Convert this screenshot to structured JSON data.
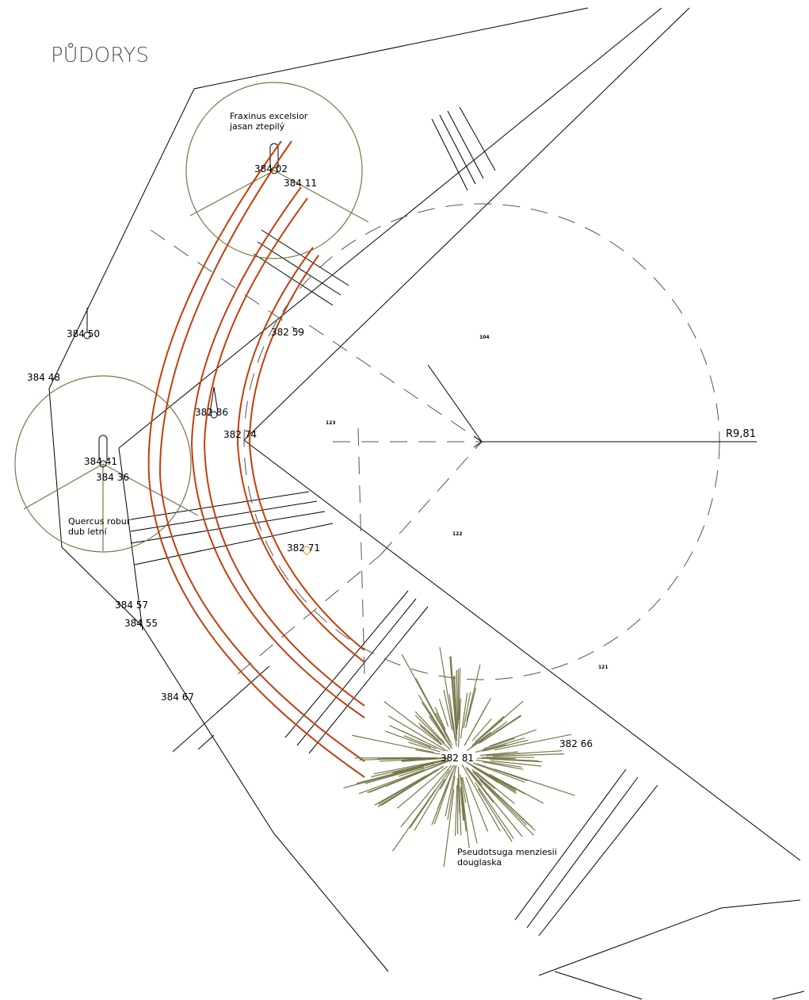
{
  "header": {
    "title": "PŮDORYS"
  },
  "trees": [
    {
      "latin": "Fraxinus excelsior",
      "czech": "jasan ztepilý"
    },
    {
      "latin": "Quercus robur",
      "czech": "dub letní"
    },
    {
      "latin": "Pseudotsuga menziesii",
      "czech": "douglaska"
    }
  ],
  "heights": [
    "384 02",
    "384 11",
    "384 50",
    "384 48",
    "382 59",
    "382 86",
    "382 74",
    "384 41",
    "384 36",
    "382 71",
    "384 57",
    "384 55",
    "384 67",
    "382 66",
    "382 81"
  ],
  "radius_label": "R9,81",
  "areas": [
    "104",
    "123",
    "122",
    "121"
  ]
}
